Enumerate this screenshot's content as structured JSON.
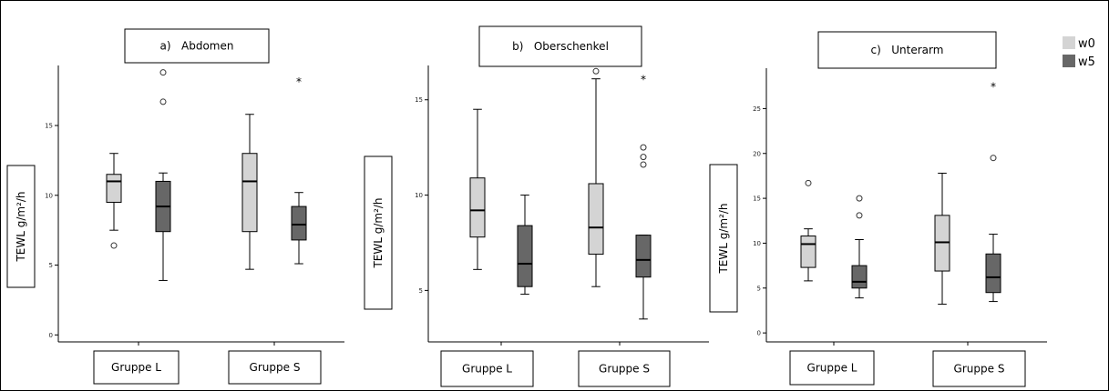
{
  "colors": {
    "w0": "#d4d4d4",
    "w5": "#676767"
  },
  "legend": [
    {
      "label": "w0",
      "color": "#d4d4d4"
    },
    {
      "label": "w5",
      "color": "#676767"
    }
  ],
  "chart_data": [
    {
      "type": "box",
      "title": "a)   Abdomen",
      "ylabel": "TEWL g/m²/h",
      "categories": [
        "Gruppe L",
        "Gruppe S"
      ],
      "yticks": [
        0,
        5,
        10,
        15
      ],
      "ylim": [
        -0.5,
        19.3
      ],
      "series": [
        {
          "name": "w0",
          "boxes": [
            {
              "group": "Gruppe L",
              "min": 7.5,
              "q1": 9.5,
              "median": 11.0,
              "q3": 11.5,
              "max": 13.0,
              "outliers": [
                6.4
              ],
              "extremes": []
            },
            {
              "group": "Gruppe S",
              "min": 4.7,
              "q1": 7.4,
              "median": 11.0,
              "q3": 13.0,
              "max": 15.8,
              "outliers": [],
              "extremes": []
            }
          ]
        },
        {
          "name": "w5",
          "boxes": [
            {
              "group": "Gruppe L",
              "min": 3.9,
              "q1": 7.4,
              "median": 9.2,
              "q3": 11.0,
              "max": 11.6,
              "outliers": [
                16.7,
                18.8
              ],
              "extremes": []
            },
            {
              "group": "Gruppe S",
              "min": 5.1,
              "q1": 6.8,
              "median": 7.9,
              "q3": 9.2,
              "max": 10.2,
              "outliers": [],
              "extremes": [
                18.2
              ]
            }
          ]
        }
      ]
    },
    {
      "type": "box",
      "title": "b)   Oberschenkel",
      "ylabel": "TEWL g/m²/h",
      "categories": [
        "Gruppe L",
        "Gruppe S"
      ],
      "yticks": [
        5,
        10,
        15
      ],
      "ylim": [
        2.3,
        16.8
      ],
      "series": [
        {
          "name": "w0",
          "boxes": [
            {
              "group": "Gruppe L",
              "min": 6.1,
              "q1": 7.8,
              "median": 9.2,
              "q3": 10.9,
              "max": 14.5,
              "outliers": [],
              "extremes": []
            },
            {
              "group": "Gruppe S",
              "min": 5.2,
              "q1": 6.9,
              "median": 8.3,
              "q3": 10.6,
              "max": 16.1,
              "outliers": [
                16.5
              ],
              "extremes": []
            }
          ]
        },
        {
          "name": "w5",
          "boxes": [
            {
              "group": "Gruppe L",
              "min": 4.8,
              "q1": 5.2,
              "median": 6.4,
              "q3": 8.4,
              "max": 10.0,
              "outliers": [],
              "extremes": []
            },
            {
              "group": "Gruppe S",
              "min": 3.5,
              "q1": 5.7,
              "median": 6.6,
              "q3": 7.9,
              "max": 7.9,
              "outliers": [
                11.6,
                12.0,
                12.5
              ],
              "extremes": [
                16.1
              ]
            }
          ]
        }
      ]
    },
    {
      "type": "box",
      "title": "c)   Unterarm",
      "ylabel": "TEWL g/m²/h",
      "categories": [
        "Gruppe L",
        "Gruppe S"
      ],
      "yticks": [
        0,
        5,
        10,
        15,
        20,
        25
      ],
      "ylim": [
        -1,
        29.5
      ],
      "series": [
        {
          "name": "w0",
          "boxes": [
            {
              "group": "Gruppe L",
              "min": 5.8,
              "q1": 7.3,
              "median": 9.9,
              "q3": 10.8,
              "max": 11.6,
              "outliers": [
                16.7
              ],
              "extremes": []
            },
            {
              "group": "Gruppe S",
              "min": 3.2,
              "q1": 6.9,
              "median": 10.1,
              "q3": 13.1,
              "max": 17.8,
              "outliers": [],
              "extremes": []
            }
          ]
        },
        {
          "name": "w5",
          "boxes": [
            {
              "group": "Gruppe L",
              "min": 3.9,
              "q1": 5.0,
              "median": 5.7,
              "q3": 7.5,
              "max": 10.4,
              "outliers": [
                13.1,
                15.0
              ],
              "extremes": []
            },
            {
              "group": "Gruppe S",
              "min": 3.5,
              "q1": 4.5,
              "median": 6.2,
              "q3": 8.8,
              "max": 11.0,
              "outliers": [
                19.5
              ],
              "extremes": [
                27.5
              ]
            }
          ]
        }
      ]
    }
  ]
}
